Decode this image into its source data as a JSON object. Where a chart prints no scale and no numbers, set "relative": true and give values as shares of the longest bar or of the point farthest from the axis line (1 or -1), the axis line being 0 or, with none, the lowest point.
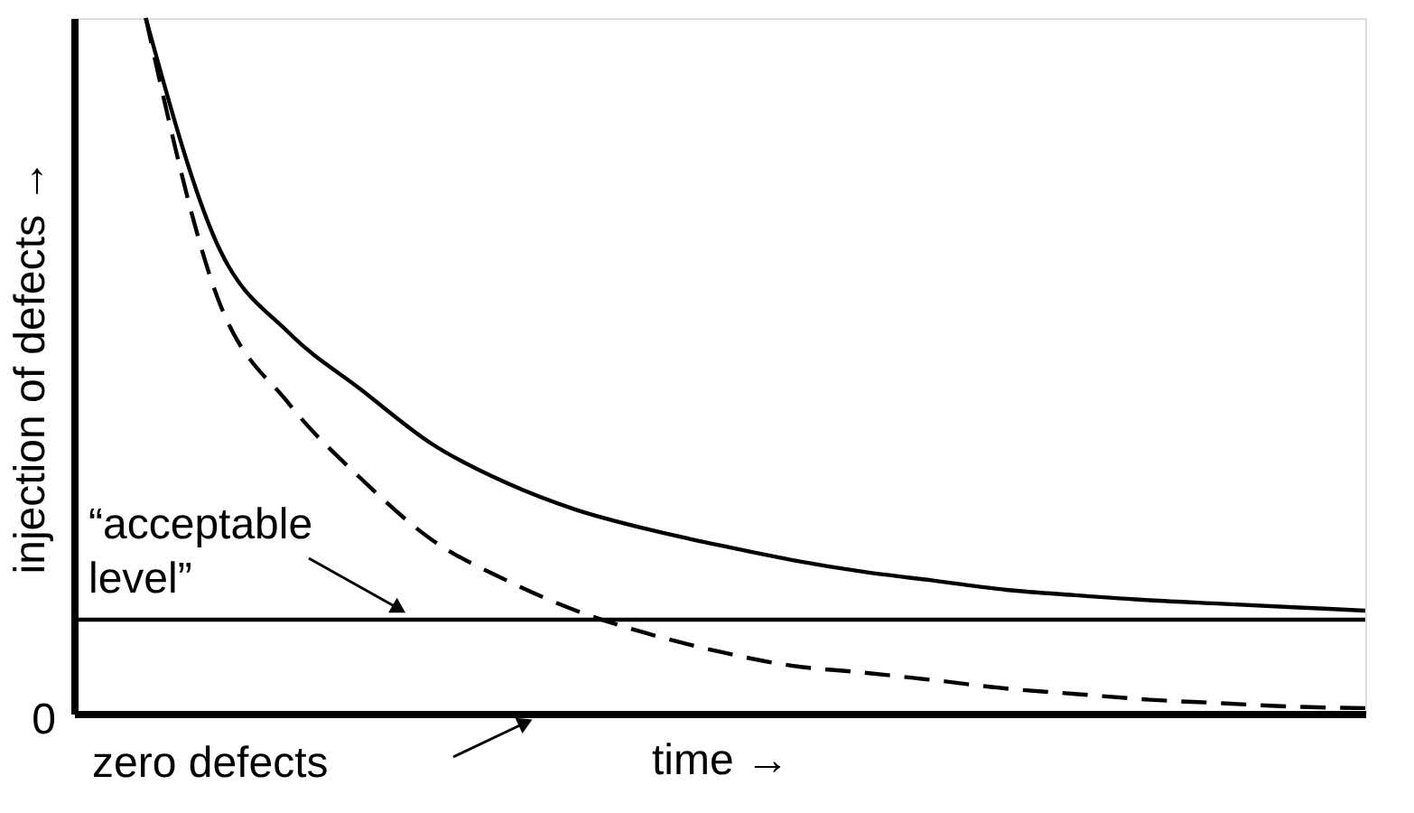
{
  "chart_data": {
    "type": "line",
    "relative": true,
    "xlabel": "time →",
    "ylabel": "injection of defects →",
    "categories": [
      null,
      null,
      null,
      null,
      null,
      null,
      null,
      null,
      null,
      null,
      null,
      null,
      null,
      null,
      null,
      null,
      null,
      null,
      null
    ],
    "series": [
      {
        "color": "#000000",
        "line_style": "solid",
        "values": [
          null,
          1.0,
          0.674,
          0.547,
          0.466,
          0.387,
          0.333,
          0.293,
          0.265,
          0.242,
          0.221,
          0.204,
          0.191,
          0.178,
          0.17,
          0.163,
          0.158,
          0.153,
          0.148
        ]
      },
      {
        "color": "#000000",
        "line_style": "dashed",
        "values": [
          null,
          1.0,
          0.598,
          0.445,
          0.338,
          0.249,
          0.193,
          0.148,
          0.115,
          0.089,
          0.069,
          0.059,
          0.048,
          0.036,
          0.028,
          0.02,
          0.015,
          0.01,
          0.008
        ]
      }
    ],
    "ref_lines": [
      {
        "axis": "y",
        "value": 0.135,
        "label": "“acceptable level”",
        "color": "#000000"
      }
    ],
    "annotations": [
      "0",
      "zero defects"
    ]
  }
}
